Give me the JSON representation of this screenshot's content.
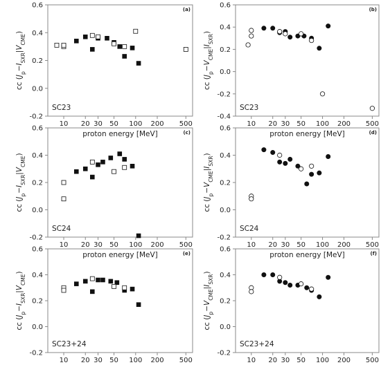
{
  "colors": {
    "axis": "#888888",
    "marker": "#111111",
    "background": "#ffffff"
  },
  "chart_data": [
    {
      "id": "a",
      "panel_label": "(a)",
      "type": "scatter",
      "xscale": "log",
      "xlabel": "proton energy [MeV]",
      "ylabel": [
        "cc (",
        "J",
        "p",
        "−",
        "I",
        "SXR",
        "|",
        "V",
        "CME",
        ")"
      ],
      "ylim": [
        -0.2,
        0.6
      ],
      "yticks": [
        "0.6",
        "0.4",
        "0.2",
        "0.0",
        "-0.2"
      ],
      "xticks": [
        "10",
        "20",
        "30",
        "50",
        "100",
        "200",
        "500"
      ],
      "cycle_label": "SC23",
      "series": [
        {
          "marker": "square",
          "fill": "filled",
          "x": [
            15,
            20,
            25,
            30,
            40,
            50,
            60,
            70,
            90,
            110
          ],
          "y": [
            0.34,
            0.37,
            0.28,
            0.36,
            0.36,
            0.33,
            0.3,
            0.23,
            0.29,
            0.18
          ]
        },
        {
          "marker": "square",
          "fill": "open",
          "x": [
            8,
            10,
            10,
            25,
            30,
            50,
            70,
            100,
            500
          ],
          "y": [
            0.31,
            0.3,
            0.31,
            0.38,
            0.37,
            0.32,
            0.3,
            0.41,
            0.28
          ]
        }
      ]
    },
    {
      "id": "b",
      "panel_label": "(b)",
      "type": "scatter",
      "xscale": "log",
      "xlabel": "proton energy [MeV]",
      "ylabel": [
        "cc (",
        "J",
        "p",
        "−",
        "V",
        "CME",
        "|",
        "I",
        "SXR",
        ")"
      ],
      "ylim": [
        -0.4,
        0.6
      ],
      "yticks": [
        "0.6",
        "0.4",
        "0.2",
        "0.0",
        "-0.2",
        "-0.4"
      ],
      "xticks": [
        "10",
        "20",
        "30",
        "50",
        "100",
        "200",
        "500"
      ],
      "cycle_label": "SC23",
      "series": [
        {
          "marker": "circle",
          "fill": "filled",
          "x": [
            15,
            20,
            25,
            30,
            35,
            45,
            55,
            70,
            90,
            120
          ],
          "y": [
            0.39,
            0.39,
            0.35,
            0.36,
            0.31,
            0.32,
            0.32,
            0.3,
            0.21,
            0.41
          ]
        },
        {
          "marker": "circle",
          "fill": "open",
          "x": [
            9,
            10,
            10,
            25,
            30,
            50,
            70,
            100,
            500
          ],
          "y": [
            0.24,
            0.32,
            0.37,
            0.36,
            0.34,
            0.34,
            0.28,
            -0.2,
            -0.33
          ]
        }
      ]
    },
    {
      "id": "c",
      "panel_label": "(c)",
      "type": "scatter",
      "xscale": "log",
      "xlabel": "proton energy [MeV]",
      "ylabel": [
        "cc (",
        "J",
        "p",
        "−",
        "I",
        "SXR",
        "|",
        "V",
        "CME",
        ")"
      ],
      "ylim": [
        -0.2,
        0.6
      ],
      "yticks": [
        "0.6",
        "0.4",
        "0.2",
        "0.0",
        "-0.2"
      ],
      "xticks": [
        "10",
        "20",
        "30",
        "50",
        "100",
        "200",
        "500"
      ],
      "cycle_label": "SC24",
      "series": [
        {
          "marker": "square",
          "fill": "filled",
          "x": [
            15,
            20,
            25,
            30,
            35,
            45,
            60,
            70,
            90,
            110
          ],
          "y": [
            0.28,
            0.3,
            0.24,
            0.33,
            0.35,
            0.38,
            0.41,
            0.37,
            0.32,
            -0.19
          ]
        },
        {
          "marker": "square",
          "fill": "open",
          "x": [
            10,
            10,
            25,
            50,
            70
          ],
          "y": [
            0.2,
            0.08,
            0.35,
            0.28,
            0.31
          ]
        }
      ]
    },
    {
      "id": "d",
      "panel_label": "(d)",
      "type": "scatter",
      "xscale": "log",
      "xlabel": "proton energy [MeV]",
      "ylabel": [
        "cc (",
        "J",
        "p",
        "−",
        "V",
        "CME",
        "|",
        "I",
        "SXR",
        ")"
      ],
      "ylim": [
        -0.2,
        0.6
      ],
      "yticks": [
        "0.6",
        "0.4",
        "0.2",
        "0.0",
        "-0.2"
      ],
      "xticks": [
        "10",
        "20",
        "30",
        "50",
        "100",
        "200",
        "500"
      ],
      "cycle_label": "SC24",
      "series": [
        {
          "marker": "circle",
          "fill": "filled",
          "x": [
            15,
            20,
            25,
            30,
            35,
            45,
            60,
            70,
            90,
            120
          ],
          "y": [
            0.44,
            0.42,
            0.35,
            0.34,
            0.37,
            0.32,
            0.19,
            0.26,
            0.27,
            0.39
          ]
        },
        {
          "marker": "circle",
          "fill": "open",
          "x": [
            10,
            10,
            25,
            50,
            70
          ],
          "y": [
            0.1,
            0.08,
            0.4,
            0.3,
            0.32
          ]
        }
      ]
    },
    {
      "id": "e",
      "panel_label": "(e)",
      "type": "scatter",
      "xscale": "log",
      "xlabel": "proton energy [MeV]",
      "ylabel": [
        "cc (",
        "J",
        "p",
        "−",
        "I",
        "SXR",
        "|",
        "V",
        "CME",
        ")"
      ],
      "ylim": [
        -0.2,
        0.6
      ],
      "yticks": [
        "0.6",
        "0.4",
        "0.2",
        "0.0",
        "-0.2"
      ],
      "xticks": [
        "10",
        "20",
        "30",
        "50",
        "100",
        "200",
        "500"
      ],
      "cycle_label": "SC23+24",
      "series": [
        {
          "marker": "square",
          "fill": "filled",
          "x": [
            15,
            20,
            25,
            30,
            35,
            45,
            55,
            70,
            90,
            110
          ],
          "y": [
            0.33,
            0.35,
            0.27,
            0.36,
            0.36,
            0.35,
            0.34,
            0.28,
            0.29,
            0.17
          ]
        },
        {
          "marker": "square",
          "fill": "open",
          "x": [
            10,
            10,
            25,
            50,
            70
          ],
          "y": [
            0.3,
            0.28,
            0.37,
            0.31,
            0.3
          ]
        }
      ]
    },
    {
      "id": "f",
      "panel_label": "(f)",
      "type": "scatter",
      "xscale": "log",
      "xlabel": "proton energy [MeV]",
      "ylabel": [
        "cc (",
        "J",
        "p",
        "−",
        "V",
        "CME",
        "|",
        "I",
        "SXR",
        ")"
      ],
      "ylim": [
        -0.2,
        0.6
      ],
      "yticks": [
        "0.6",
        "0.4",
        "0.2",
        "0.0",
        "-0.2"
      ],
      "xticks": [
        "10",
        "20",
        "30",
        "50",
        "100",
        "200",
        "500"
      ],
      "cycle_label": "SC23+24",
      "series": [
        {
          "marker": "circle",
          "fill": "filled",
          "x": [
            15,
            20,
            25,
            30,
            35,
            45,
            60,
            70,
            90,
            120
          ],
          "y": [
            0.4,
            0.4,
            0.35,
            0.34,
            0.32,
            0.32,
            0.3,
            0.28,
            0.23,
            0.38
          ]
        },
        {
          "marker": "circle",
          "fill": "open",
          "x": [
            10,
            10,
            25,
            50,
            70
          ],
          "y": [
            0.3,
            0.27,
            0.38,
            0.33,
            0.29
          ]
        }
      ]
    }
  ]
}
